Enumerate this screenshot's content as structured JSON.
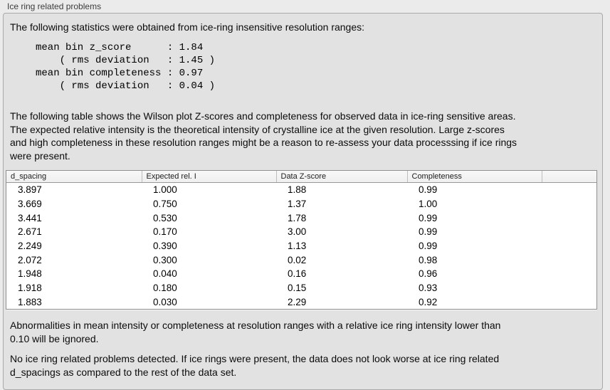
{
  "panel": {
    "title": "Ice ring related problems"
  },
  "statistics": {
    "intro": "The following statistics were obtained from ice-ring insensitive resolution ranges:",
    "block_lines": [
      "mean bin z_score      : 1.84",
      "    ( rms deviation   : 1.45 )",
      "mean bin completeness : 0.97",
      "    ( rms deviation   : 0.04 )"
    ]
  },
  "table_description_lines": [
    "The following table shows the Wilson plot Z-scores and completeness for observed data in ice-ring sensitive areas.",
    "The expected relative intensity is the theoretical intensity of crystalline ice at the given resolution. Large z-scores",
    "and high completeness in these resolution ranges might be a reason to re-assess your data processsing if ice rings",
    "were present."
  ],
  "table": {
    "columns": [
      "d_spacing",
      "Expected rel. I",
      "Data Z-score",
      "Completeness",
      ""
    ],
    "rows": [
      [
        "3.897",
        "1.000",
        "1.88",
        "0.99"
      ],
      [
        "3.669",
        "0.750",
        "1.37",
        "1.00"
      ],
      [
        "3.441",
        "0.530",
        "1.78",
        "0.99"
      ],
      [
        "2.671",
        "0.170",
        "3.00",
        "0.99"
      ],
      [
        "2.249",
        "0.390",
        "1.13",
        "0.99"
      ],
      [
        "2.072",
        "0.300",
        "0.02",
        "0.98"
      ],
      [
        "1.948",
        "0.040",
        "0.16",
        "0.96"
      ],
      [
        "1.918",
        "0.180",
        "0.15",
        "0.93"
      ],
      [
        "1.883",
        "0.030",
        "2.29",
        "0.92"
      ]
    ]
  },
  "notes": {
    "ignore_lines": [
      "Abnormalities in mean intensity or completeness at resolution ranges with a relative ice ring intensity lower than",
      "0.10 will be ignored."
    ],
    "conclusion_lines": [
      "No ice ring related problems detected. If ice rings were present, the data does not look worse at ice ring related",
      "d_spacings as compared to the rest of the data set."
    ]
  },
  "colors": {
    "page_background": "#ebebeb",
    "panel_background": "#e2e2e2",
    "panel_border": "#a9a9a9",
    "table_background": "#ffffff",
    "table_border": "#8f8f8f",
    "header_background": "#f4f4f4",
    "text": "#0b0b0b"
  }
}
